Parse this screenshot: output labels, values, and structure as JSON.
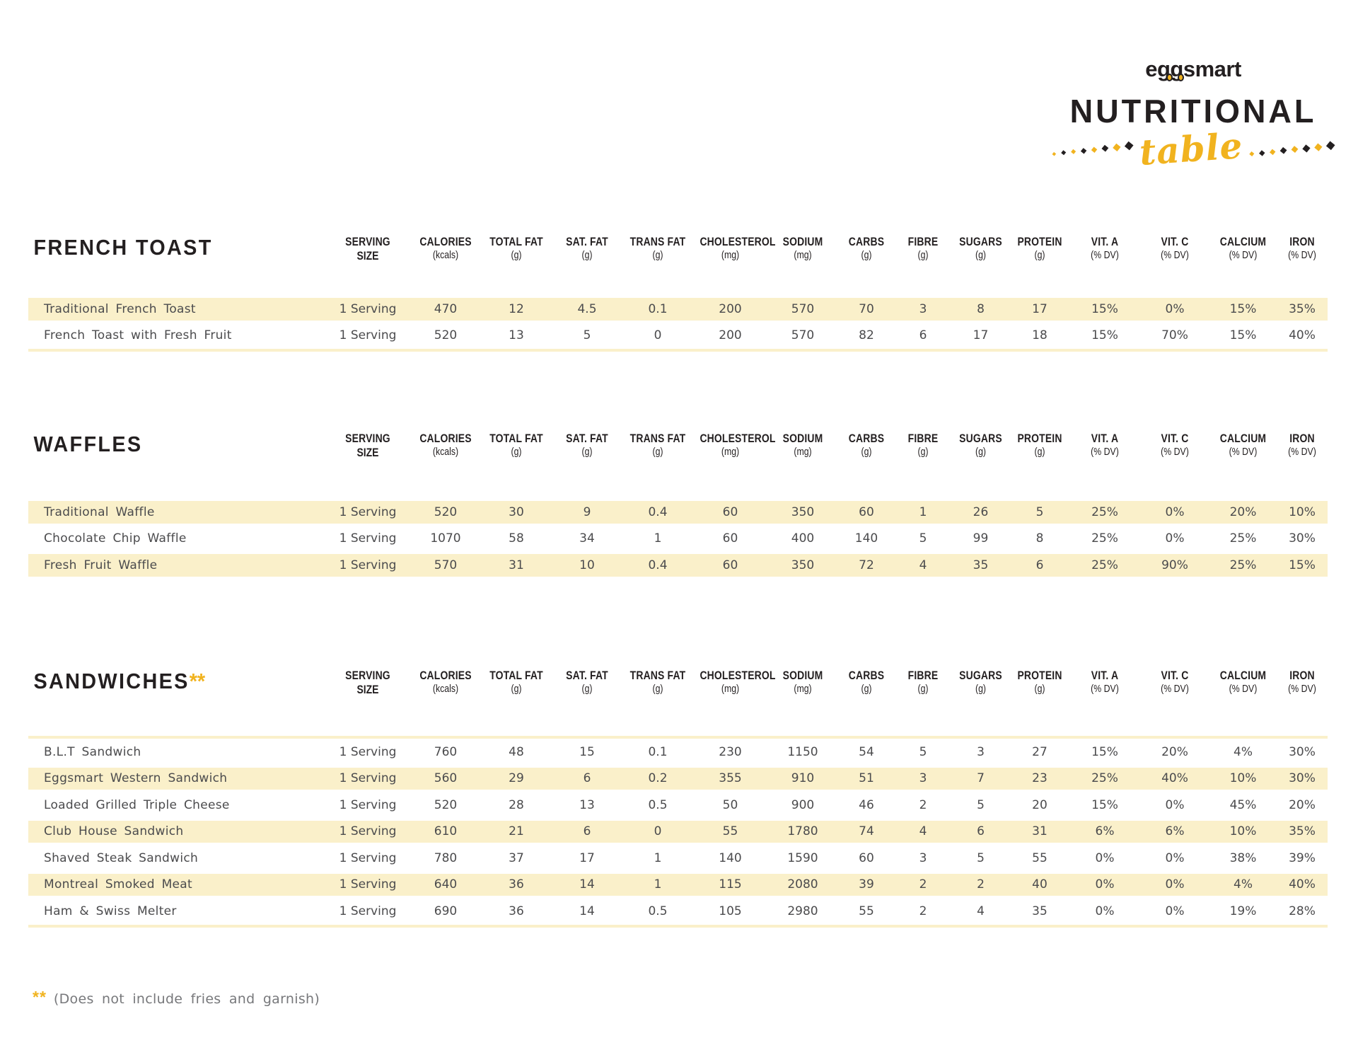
{
  "logo": {
    "brand": "eggsmart",
    "title_line": "NUTRITIONAL",
    "script_word": "table"
  },
  "columns": [
    {
      "label": "SERVING",
      "unit": "SIZE"
    },
    {
      "label": "CALORIES",
      "unit": "(kcals)"
    },
    {
      "label": "TOTAL FAT",
      "unit": "(g)"
    },
    {
      "label": "SAT. FAT",
      "unit": "(g)"
    },
    {
      "label": "TRANS FAT",
      "unit": "(g)"
    },
    {
      "label": "CHOLESTEROL",
      "unit": "(mg)"
    },
    {
      "label": "SODIUM",
      "unit": "(mg)"
    },
    {
      "label": "CARBS",
      "unit": "(g)"
    },
    {
      "label": "FIBRE",
      "unit": "(g)"
    },
    {
      "label": "SUGARS",
      "unit": "(g)"
    },
    {
      "label": "PROTEIN",
      "unit": "(g)"
    },
    {
      "label": "VIT. A",
      "unit": "(% DV)"
    },
    {
      "label": "VIT. C",
      "unit": "(% DV)"
    },
    {
      "label": "CALCIUM",
      "unit": "(% DV)"
    },
    {
      "label": "IRON",
      "unit": "(% DV)"
    }
  ],
  "sections": [
    {
      "title": "FRENCH TOAST",
      "title_suffix": "",
      "stripe_start": "yellow",
      "rows": [
        {
          "name": "Traditional French Toast",
          "values": [
            "1 Serving",
            "470",
            "12",
            "4.5",
            "0.1",
            "200",
            "570",
            "70",
            "3",
            "8",
            "17",
            "15%",
            "0%",
            "15%",
            "35%"
          ]
        },
        {
          "name": "French Toast with Fresh Fruit",
          "values": [
            "1 Serving",
            "520",
            "13",
            "5",
            "0",
            "200",
            "570",
            "82",
            "6",
            "17",
            "18",
            "15%",
            "70%",
            "15%",
            "40%"
          ]
        }
      ]
    },
    {
      "title": "WAFFLES",
      "title_suffix": "",
      "stripe_start": "yellow",
      "rows": [
        {
          "name": "Traditional Waffle",
          "values": [
            "1 Serving",
            "520",
            "30",
            "9",
            "0.4",
            "60",
            "350",
            "60",
            "1",
            "26",
            "5",
            "25%",
            "0%",
            "20%",
            "10%"
          ]
        },
        {
          "name": "Chocolate Chip Waffle",
          "values": [
            "1 Serving",
            "1070",
            "58",
            "34",
            "1",
            "60",
            "400",
            "140",
            "5",
            "99",
            "8",
            "25%",
            "0%",
            "25%",
            "30%"
          ]
        },
        {
          "name": "Fresh Fruit Waffle",
          "values": [
            "1 Serving",
            "570",
            "31",
            "10",
            "0.4",
            "60",
            "350",
            "72",
            "4",
            "35",
            "6",
            "25%",
            "90%",
            "25%",
            "15%"
          ]
        }
      ]
    },
    {
      "title": "SANDWICHES",
      "title_suffix": "**",
      "stripe_start": "white",
      "rows": [
        {
          "name": "B.L.T Sandwich",
          "values": [
            "1 Serving",
            "760",
            "48",
            "15",
            "0.1",
            "230",
            "1150",
            "54",
            "5",
            "3",
            "27",
            "15%",
            "20%",
            "4%",
            "30%"
          ]
        },
        {
          "name": "Eggsmart Western Sandwich",
          "values": [
            "1 Serving",
            "560",
            "29",
            "6",
            "0.2",
            "355",
            "910",
            "51",
            "3",
            "7",
            "23",
            "25%",
            "40%",
            "10%",
            "30%"
          ]
        },
        {
          "name": "Loaded Grilled Triple Cheese",
          "values": [
            "1 Serving",
            "520",
            "28",
            "13",
            "0.5",
            "50",
            "900",
            "46",
            "2",
            "5",
            "20",
            "15%",
            "0%",
            "45%",
            "20%"
          ]
        },
        {
          "name": "Club House Sandwich",
          "values": [
            "1 Serving",
            "610",
            "21",
            "6",
            "0",
            "55",
            "1780",
            "74",
            "4",
            "6",
            "31",
            "6%",
            "6%",
            "10%",
            "35%"
          ]
        },
        {
          "name": "Shaved Steak Sandwich",
          "values": [
            "1 Serving",
            "780",
            "37",
            "17",
            "1",
            "140",
            "1590",
            "60",
            "3",
            "5",
            "55",
            "0%",
            "0%",
            "38%",
            "39%"
          ]
        },
        {
          "name": "Montreal Smoked Meat",
          "values": [
            "1 Serving",
            "640",
            "36",
            "14",
            "1",
            "115",
            "2080",
            "39",
            "2",
            "2",
            "40",
            "0%",
            "0%",
            "4%",
            "40%"
          ]
        },
        {
          "name": "Ham & Swiss Melter",
          "values": [
            "1 Serving",
            "690",
            "36",
            "14",
            "0.5",
            "105",
            "2980",
            "55",
            "2",
            "4",
            "35",
            "0%",
            "0%",
            "19%",
            "28%"
          ]
        }
      ]
    }
  ],
  "footnote": {
    "marker": "**",
    "text": "(Does not include fries and garnish)"
  },
  "colors": {
    "accent_yellow": "#f1b31f",
    "row_cream": "#faf0ca",
    "ink": "#231f20",
    "text_grey": "#4b4b4d",
    "footnote_grey": "#77787b"
  }
}
